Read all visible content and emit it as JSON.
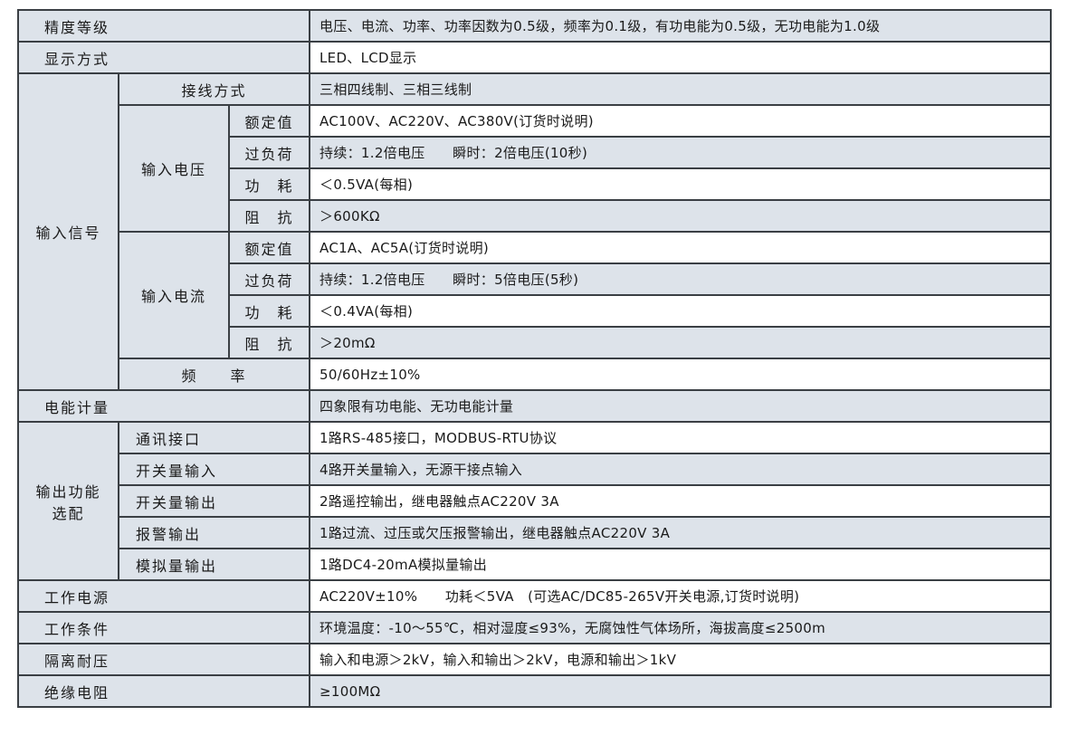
{
  "rows": {
    "accuracy": {
      "label": "精度等级",
      "value": "电压、电流、功率、功率因数为0.5级，频率为0.1级，有功电能为0.5级，无功电能为1.0级"
    },
    "display": {
      "label": "显示方式",
      "value": "LED、LCD显示"
    },
    "input_signal": {
      "label": "输入信号",
      "wiring": {
        "label": "接线方式",
        "value": "三相四线制、三相三线制"
      },
      "voltage": {
        "label": "输入电压",
        "rated": {
          "label": "额定值",
          "value": "AC100V、AC220V、AC380V(订货时说明)"
        },
        "overload": {
          "label": "过负荷",
          "value": "持续：1.2倍电压　　瞬时：2倍电压(10秒)"
        },
        "power": {
          "label": "功　耗",
          "value": "＜0.5VA(每相)"
        },
        "impedance": {
          "label": "阻　抗",
          "value": "＞600KΩ"
        }
      },
      "current": {
        "label": "输入电流",
        "rated": {
          "label": "额定值",
          "value": "AC1A、AC5A(订货时说明)"
        },
        "overload": {
          "label": "过负荷",
          "value": "持续：1.2倍电压　　瞬时：5倍电压(5秒)"
        },
        "power": {
          "label": "功　耗",
          "value": "＜0.4VA(每相)"
        },
        "impedance": {
          "label": "阻　抗",
          "value": "＞20mΩ"
        }
      },
      "frequency": {
        "label": "频　　率",
        "value": "50/60Hz±10%"
      }
    },
    "energy": {
      "label": "电能计量",
      "value": "四象限有功电能、无功电能计量"
    },
    "output": {
      "label": "输出功能选配",
      "comm": {
        "label": "通讯接口",
        "value": "1路RS-485接口，MODBUS-RTU协议"
      },
      "di": {
        "label": "开关量输入",
        "value": "4路开关量输入，无源干接点输入"
      },
      "do": {
        "label": "开关量输出",
        "value": "2路遥控输出，继电器触点AC220V 3A"
      },
      "alarm": {
        "label": "报警输出",
        "value": "1路过流、过压或欠压报警输出，继电器触点AC220V 3A"
      },
      "analog": {
        "label": "模拟量输出",
        "value": "1路DC4-20mA模拟量输出"
      }
    },
    "supply": {
      "label": "工作电源",
      "value": "AC220V±10%　　功耗＜5VA　(可选AC/DC85-265V开关电源,订货时说明)"
    },
    "conditions": {
      "label": "工作条件",
      "value": "环境温度：-10～55℃，相对湿度≤93%，无腐蚀性气体场所，海拔高度≤2500m"
    },
    "isolation": {
      "label": "隔离耐压",
      "value": "输入和电源＞2kV，输入和输出＞2kV，电源和输出＞1kV"
    },
    "insulation": {
      "label": "绝缘电阻",
      "value": "≥100MΩ"
    }
  },
  "colors": {
    "label_bg": "#dde3ea",
    "border": "#3a3f44"
  }
}
